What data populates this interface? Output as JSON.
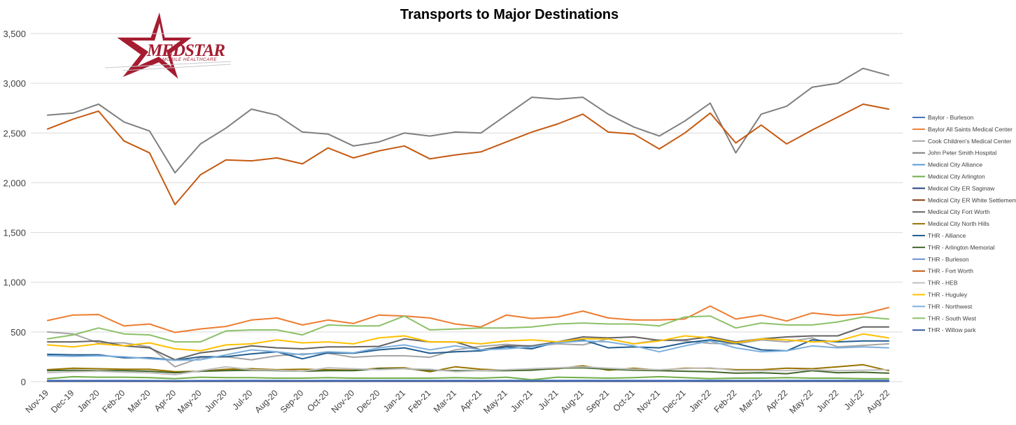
{
  "logo": {
    "brand": "MEDSTAR",
    "tagline": "MOBILE HEALTHCARE"
  },
  "chart_data": {
    "type": "line",
    "title": "Transports to Major Destinations",
    "xlabel": "",
    "ylabel": "",
    "ylim": [
      0,
      3500
    ],
    "yticks": [
      0,
      500,
      1000,
      1500,
      2000,
      2500,
      3000,
      3500
    ],
    "ytick_labels": [
      "0",
      "500",
      "1,000",
      "1,500",
      "2,000",
      "2,500",
      "3,000",
      "3,500"
    ],
    "grid": true,
    "legend_position": "right",
    "categories": [
      "Nov-19",
      "Dec-19",
      "Jan-20",
      "Feb-20",
      "Mar-20",
      "Apr-20",
      "May-20",
      "Jun-20",
      "Jul-20",
      "Aug-20",
      "Sep-20",
      "Oct-20",
      "Nov-20",
      "Dec-20",
      "Jan-21",
      "Feb-21",
      "Mar-21",
      "Apr-21",
      "May-21",
      "Jun-21",
      "Jul-21",
      "Aug-21",
      "Sep-21",
      "Oct-21",
      "Nov-21",
      "Dec-21",
      "Jan-22",
      "Feb-22",
      "Mar-22",
      "Apr-22",
      "May-22",
      "Jun-22",
      "Jul-22",
      "Aug-22"
    ],
    "series": [
      {
        "name": "Baylor - Burleson",
        "color": "#4472c4",
        "values": [
          8,
          9,
          10,
          9,
          8,
          6,
          8,
          9,
          9,
          10,
          9,
          10,
          9,
          9,
          10,
          9,
          10,
          8,
          9,
          10,
          9,
          10,
          9,
          9,
          8,
          10,
          10,
          9,
          9,
          9,
          10,
          9,
          9,
          10
        ]
      },
      {
        "name": "Baylor All Saints Medical Center",
        "color": "#ed7d31",
        "values": [
          615,
          670,
          675,
          560,
          580,
          495,
          530,
          555,
          620,
          640,
          570,
          620,
          585,
          670,
          660,
          640,
          580,
          550,
          670,
          635,
          650,
          710,
          640,
          620,
          620,
          630,
          760,
          630,
          670,
          610,
          690,
          665,
          680,
          745
        ]
      },
      {
        "name": "Cook Children's Medical Center",
        "color": "#a5a5a5",
        "values": [
          500,
          480,
          390,
          390,
          350,
          150,
          240,
          250,
          220,
          260,
          280,
          285,
          245,
          260,
          260,
          245,
          320,
          355,
          375,
          355,
          380,
          370,
          430,
          380,
          420,
          410,
          385,
          380,
          420,
          400,
          440,
          350,
          365,
          380
        ]
      },
      {
        "name": "John Peter Smith Hospital",
        "color": "#7f7f7f",
        "values": [
          2680,
          2700,
          2790,
          2610,
          2520,
          2100,
          2390,
          2550,
          2740,
          2680,
          2510,
          2490,
          2370,
          2410,
          2500,
          2470,
          2510,
          2500,
          2680,
          2860,
          2840,
          2860,
          2690,
          2560,
          2470,
          2620,
          2800,
          2300,
          2690,
          2770,
          2960,
          3000,
          3150,
          3080
        ]
      },
      {
        "name": "Medical City Alliance",
        "color": "#5b9bd5",
        "values": [
          10,
          10,
          11,
          10,
          9,
          8,
          9,
          10,
          11,
          10,
          10,
          11,
          10,
          10,
          11,
          10,
          11,
          10,
          11,
          12,
          11,
          12,
          11,
          11,
          10,
          11,
          12,
          11,
          11,
          11,
          12,
          11,
          12,
          12
        ]
      },
      {
        "name": "Medical City Arlington",
        "color": "#70ad47",
        "values": [
          30,
          50,
          45,
          45,
          40,
          30,
          45,
          40,
          40,
          35,
          35,
          40,
          35,
          35,
          35,
          35,
          40,
          35,
          45,
          20,
          45,
          40,
          35,
          40,
          50,
          40,
          30,
          35,
          35,
          40,
          35,
          35,
          30,
          30
        ]
      },
      {
        "name": "Medical City ER Saginaw",
        "color": "#264478",
        "values": [
          5,
          5,
          6,
          5,
          5,
          4,
          5,
          5,
          6,
          5,
          5,
          5,
          5,
          6,
          5,
          5,
          5,
          5,
          6,
          5,
          5,
          6,
          5,
          5,
          5,
          6,
          5,
          5,
          5,
          5,
          6,
          5,
          5,
          5
        ]
      },
      {
        "name": "Medical City ER White Settlement",
        "color": "#843c0c",
        "values": [
          4,
          4,
          5,
          4,
          4,
          3,
          4,
          4,
          5,
          4,
          4,
          4,
          4,
          5,
          4,
          4,
          4,
          4,
          5,
          4,
          4,
          5,
          4,
          4,
          4,
          5,
          4,
          4,
          4,
          4,
          5,
          4,
          4,
          4
        ]
      },
      {
        "name": "Medical City Fort Worth",
        "color": "#636363",
        "values": [
          400,
          400,
          410,
          360,
          340,
          220,
          290,
          320,
          360,
          340,
          330,
          350,
          350,
          355,
          430,
          400,
          400,
          320,
          360,
          360,
          400,
          450,
          440,
          450,
          415,
          420,
          450,
          400,
          430,
          450,
          460,
          460,
          550,
          550
        ]
      },
      {
        "name": "Medical City North Hills",
        "color": "#997300",
        "values": [
          120,
          135,
          130,
          125,
          125,
          100,
          105,
          125,
          130,
          120,
          125,
          120,
          115,
          135,
          140,
          100,
          150,
          125,
          115,
          120,
          130,
          160,
          115,
          135,
          115,
          135,
          135,
          120,
          120,
          135,
          130,
          150,
          170,
          110
        ]
      },
      {
        "name": "THR - Alliance",
        "color": "#255e91",
        "values": [
          275,
          270,
          270,
          240,
          240,
          215,
          250,
          250,
          280,
          300,
          230,
          290,
          285,
          320,
          340,
          285,
          300,
          310,
          350,
          330,
          400,
          420,
          340,
          350,
          340,
          390,
          420,
          385,
          320,
          310,
          420,
          400,
          410,
          410
        ]
      },
      {
        "name": "THR - Arlington Memorial",
        "color": "#43682b",
        "values": [
          110,
          115,
          110,
          110,
          105,
          90,
          105,
          110,
          115,
          110,
          105,
          110,
          110,
          130,
          130,
          115,
          110,
          110,
          110,
          115,
          135,
          140,
          125,
          115,
          110,
          105,
          100,
          85,
          90,
          80,
          110,
          90,
          95,
          85
        ]
      },
      {
        "name": "THR - Burleson",
        "color": "#698ed0",
        "values": [
          12,
          13,
          12,
          12,
          11,
          10,
          11,
          12,
          12,
          12,
          11,
          12,
          12,
          12,
          13,
          12,
          12,
          12,
          13,
          12,
          13,
          13,
          12,
          12,
          12,
          13,
          13,
          12,
          12,
          12,
          13,
          12,
          13,
          13
        ]
      },
      {
        "name": "THR - Fort Worth",
        "color": "#c55a11",
        "values": [
          2540,
          2640,
          2720,
          2420,
          2300,
          1780,
          2080,
          2230,
          2220,
          2250,
          2190,
          2350,
          2250,
          2320,
          2370,
          2240,
          2280,
          2310,
          2410,
          2510,
          2590,
          2690,
          2510,
          2490,
          2340,
          2500,
          2700,
          2400,
          2580,
          2390,
          2530,
          2660,
          2790,
          2740
        ]
      },
      {
        "name": "THR - HEB",
        "color": "#bfbfbf",
        "values": [
          90,
          100,
          105,
          95,
          90,
          70,
          110,
          150,
          120,
          115,
          105,
          140,
          130,
          120,
          130,
          125,
          100,
          110,
          120,
          130,
          140,
          150,
          135,
          125,
          120,
          130,
          140,
          110,
          110,
          110,
          120,
          110,
          115,
          120
        ]
      },
      {
        "name": "THR - Huguley",
        "color": "#ffc000",
        "values": [
          370,
          350,
          380,
          360,
          390,
          330,
          310,
          370,
          380,
          420,
          390,
          400,
          380,
          440,
          460,
          400,
          400,
          380,
          410,
          420,
          400,
          430,
          430,
          380,
          410,
          460,
          440,
          390,
          430,
          420,
          400,
          410,
          480,
          440
        ]
      },
      {
        "name": "THR - Northwest",
        "color": "#7cafdd",
        "values": [
          260,
          255,
          260,
          250,
          230,
          215,
          220,
          270,
          320,
          300,
          270,
          300,
          290,
          340,
          370,
          320,
          360,
          320,
          330,
          350,
          390,
          410,
          400,
          360,
          300,
          360,
          410,
          340,
          300,
          310,
          360,
          340,
          350,
          340
        ]
      },
      {
        "name": "THR - South West",
        "color": "#8cc168",
        "values": [
          430,
          470,
          540,
          480,
          470,
          400,
          400,
          510,
          520,
          520,
          470,
          570,
          560,
          560,
          660,
          520,
          530,
          540,
          540,
          550,
          580,
          590,
          580,
          580,
          560,
          650,
          660,
          540,
          590,
          570,
          570,
          600,
          650,
          630
        ]
      },
      {
        "name": "THR - Willow park",
        "color": "#335aa1",
        "values": [
          5,
          5,
          5,
          5,
          5,
          4,
          5,
          5,
          5,
          5,
          5,
          5,
          5,
          5,
          5,
          5,
          5,
          5,
          5,
          5,
          5,
          5,
          5,
          5,
          5,
          5,
          5,
          5,
          5,
          5,
          5,
          5,
          5,
          5
        ]
      }
    ]
  }
}
